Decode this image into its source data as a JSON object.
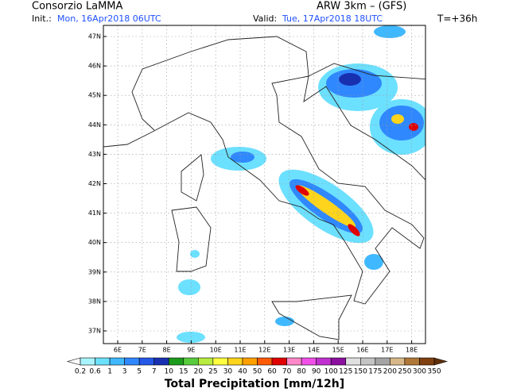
{
  "header": {
    "title": "Consorzio LaMMA",
    "init_label": "Init.:",
    "init": "Mon, 16Apr2018 06UTC",
    "model": "ARW 3km – (GFS)",
    "valid_label": "Valid:",
    "valid": "Tue, 17Apr2018 18UTC",
    "lead": "T=+36h"
  },
  "map": {
    "lon_labels": [
      "6E",
      "7E",
      "8E",
      "9E",
      "10E",
      "11E",
      "12E",
      "13E",
      "14E",
      "15E",
      "16E",
      "17E",
      "18E"
    ],
    "lat_labels": [
      "47N",
      "46N",
      "45N",
      "44N",
      "43N",
      "42N",
      "41N",
      "40N",
      "39N",
      "38N",
      "37N"
    ]
  },
  "colorbar": {
    "title": "Total Precipitation [mm/12h]",
    "labels": [
      "0.2",
      "0.6",
      "1",
      "3",
      "5",
      "7",
      "10",
      "15",
      "20",
      "25",
      "30",
      "40",
      "50",
      "60",
      "70",
      "80",
      "90",
      "100",
      "125",
      "150",
      "175",
      "200",
      "250",
      "300",
      "350"
    ],
    "colors": [
      "#a8f4ff",
      "#6ce0ff",
      "#40b8ff",
      "#3088ff",
      "#2458e8",
      "#1830b0",
      "#1c9c1c",
      "#58cc3c",
      "#b8ec40",
      "#ffff40",
      "#ffd41c",
      "#ffa000",
      "#ff5a00",
      "#e00000",
      "#ff88c8",
      "#f050e8",
      "#c030d0",
      "#8c10a0",
      "#e0e0e0",
      "#c4c4c4",
      "#a4a4a4",
      "#d8b888",
      "#b07838",
      "#804010"
    ],
    "under_color": "#ffffff",
    "over_color": "#603008"
  }
}
